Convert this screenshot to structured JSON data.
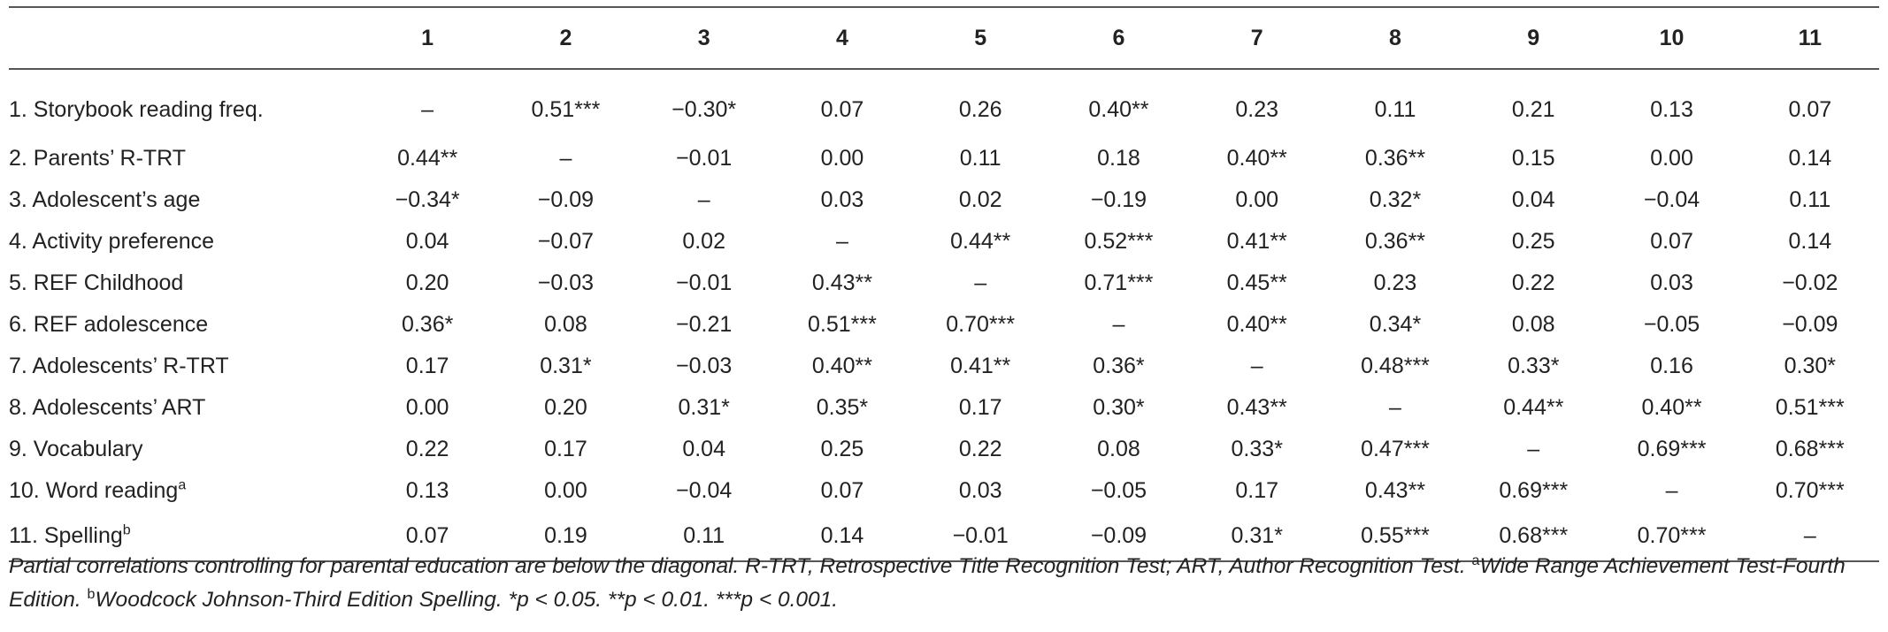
{
  "columns": [
    "1",
    "2",
    "3",
    "4",
    "5",
    "6",
    "7",
    "8",
    "9",
    "10",
    "11"
  ],
  "rows": [
    {
      "label": "1. Storybook reading freq.",
      "sup": "",
      "cells": [
        "–",
        "0.51***",
        "−0.30*",
        "0.07",
        "0.26",
        "0.40**",
        "0.23",
        "0.11",
        "0.21",
        "0.13",
        "0.07"
      ]
    },
    {
      "label": "2. Parents’ R-TRT",
      "sup": "",
      "cells": [
        "0.44**",
        "–",
        "−0.01",
        "0.00",
        "0.11",
        "0.18",
        "0.40**",
        "0.36**",
        "0.15",
        "0.00",
        "0.14"
      ]
    },
    {
      "label": "3. Adolescent’s age",
      "sup": "",
      "cells": [
        "−0.34*",
        "−0.09",
        "–",
        "0.03",
        "0.02",
        "−0.19",
        "0.00",
        "0.32*",
        "0.04",
        "−0.04",
        "0.11"
      ]
    },
    {
      "label": "4. Activity preference",
      "sup": "",
      "cells": [
        "0.04",
        "−0.07",
        "0.02",
        "–",
        "0.44**",
        "0.52***",
        "0.41**",
        "0.36**",
        "0.25",
        "0.07",
        "0.14"
      ]
    },
    {
      "label": "5. REF Childhood",
      "sup": "",
      "cells": [
        "0.20",
        "−0.03",
        "−0.01",
        "0.43**",
        "–",
        "0.71***",
        "0.45**",
        "0.23",
        "0.22",
        "0.03",
        "−0.02"
      ]
    },
    {
      "label": "6. REF adolescence",
      "sup": "",
      "cells": [
        "0.36*",
        "0.08",
        "−0.21",
        "0.51***",
        "0.70***",
        "–",
        "0.40**",
        "0.34*",
        "0.08",
        "−0.05",
        "−0.09"
      ]
    },
    {
      "label": "7. Adolescents’ R-TRT",
      "sup": "",
      "cells": [
        "0.17",
        "0.31*",
        "−0.03",
        "0.40**",
        "0.41**",
        "0.36*",
        "–",
        "0.48***",
        "0.33*",
        "0.16",
        "0.30*"
      ]
    },
    {
      "label": "8. Adolescents’ ART",
      "sup": "",
      "cells": [
        "0.00",
        "0.20",
        "0.31*",
        "0.35*",
        "0.17",
        "0.30*",
        "0.43**",
        "–",
        "0.44**",
        "0.40**",
        "0.51***"
      ]
    },
    {
      "label": "9. Vocabulary",
      "sup": "",
      "cells": [
        "0.22",
        "0.17",
        "0.04",
        "0.25",
        "0.22",
        "0.08",
        "0.33*",
        "0.47***",
        "–",
        "0.69***",
        "0.68***"
      ]
    },
    {
      "label": "10. Word reading",
      "sup": "a",
      "cells": [
        "0.13",
        "0.00",
        "−0.04",
        "0.07",
        "0.03",
        "−0.05",
        "0.17",
        "0.43**",
        "0.69***",
        "–",
        "0.70***"
      ]
    },
    {
      "label": "11. Spelling",
      "sup": "b",
      "cells": [
        "0.07",
        "0.19",
        "0.11",
        "0.14",
        "−0.01",
        "−0.09",
        "0.31*",
        "0.55***",
        "0.68***",
        "0.70***",
        "–"
      ]
    }
  ],
  "footnote": {
    "part1": "Partial correlations controlling for parental education are below the diagonal. R-TRT, Retrospective Title Recognition Test; ART, Author Recognition Test. ",
    "sup_a": "a",
    "part2": "Wide Range Achievement Test-Fourth Edition. ",
    "sup_b": "b",
    "part3": "Woodcock Johnson-Third Edition Spelling. *p < 0.05. **p < 0.01. ***p < 0.001."
  }
}
